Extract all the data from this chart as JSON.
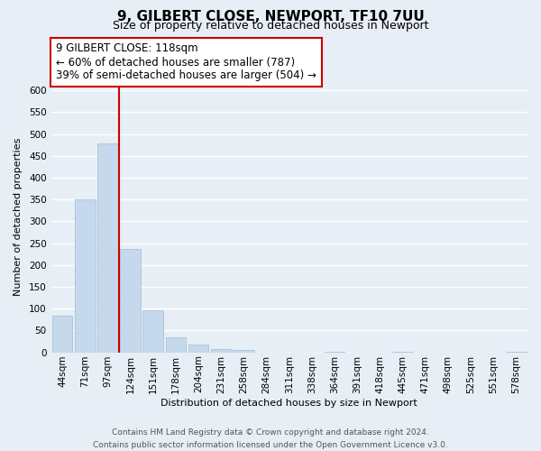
{
  "title": "9, GILBERT CLOSE, NEWPORT, TF10 7UU",
  "subtitle": "Size of property relative to detached houses in Newport",
  "xlabel": "Distribution of detached houses by size in Newport",
  "ylabel": "Number of detached properties",
  "bin_labels": [
    "44sqm",
    "71sqm",
    "97sqm",
    "124sqm",
    "151sqm",
    "178sqm",
    "204sqm",
    "231sqm",
    "258sqm",
    "284sqm",
    "311sqm",
    "338sqm",
    "364sqm",
    "391sqm",
    "418sqm",
    "445sqm",
    "471sqm",
    "498sqm",
    "525sqm",
    "551sqm",
    "578sqm"
  ],
  "bar_values": [
    83,
    350,
    478,
    236,
    96,
    35,
    18,
    8,
    5,
    0,
    0,
    0,
    2,
    0,
    0,
    1,
    0,
    0,
    0,
    0,
    1
  ],
  "bar_color": "#c6d9ec",
  "bar_edge_color": "#a0bcd8",
  "vline_color": "#cc0000",
  "ylim": [
    0,
    620
  ],
  "yticks": [
    0,
    50,
    100,
    150,
    200,
    250,
    300,
    350,
    400,
    450,
    500,
    550,
    600
  ],
  "annotation_line1": "9 GILBERT CLOSE: 118sqm",
  "annotation_line2": "← 60% of detached houses are smaller (787)",
  "annotation_line3": "39% of semi-detached houses are larger (504) →",
  "annotation_box_color": "#ffffff",
  "annotation_box_edge": "#cc0000",
  "footer_line1": "Contains HM Land Registry data © Crown copyright and database right 2024.",
  "footer_line2": "Contains public sector information licensed under the Open Government Licence v3.0.",
  "bg_color": "#e8eef5",
  "plot_bg_color": "#e8eef5",
  "grid_color": "#ffffff",
  "title_fontsize": 11,
  "subtitle_fontsize": 9,
  "axis_label_fontsize": 8,
  "tick_fontsize": 7.5,
  "annotation_fontsize": 8.5,
  "footer_fontsize": 6.5,
  "vline_x_index": 2.5
}
